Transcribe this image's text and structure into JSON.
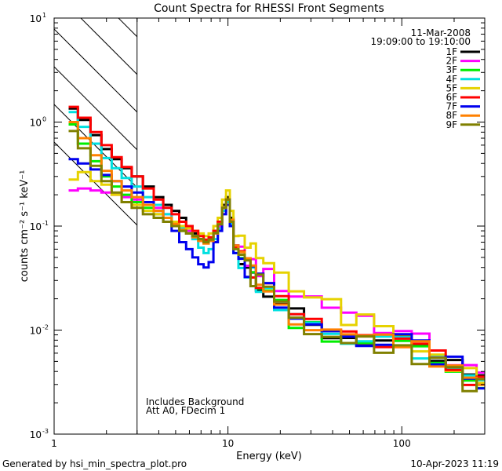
{
  "chart_data": {
    "type": "line",
    "title": "Count Spectra for RHESSI Front Segments",
    "xlabel": "Energy (keV)",
    "ylabel": "counts cm⁻² s⁻¹ keV⁻¹",
    "xscale": "log",
    "yscale": "log",
    "xlim": [
      1,
      300
    ],
    "ylim": [
      0.001,
      10
    ],
    "x_tick_labels": [
      "1",
      "10",
      "100"
    ],
    "y_tick_labels": [
      {
        "base": "10",
        "exp": "-3",
        "value": 0.001
      },
      {
        "base": "10",
        "exp": "-2",
        "value": 0.01
      },
      {
        "base": "10",
        "exp": "-1",
        "value": 0.1
      },
      {
        "base": "10",
        "exp": "0",
        "value": 1
      },
      {
        "base": "10",
        "exp": "1",
        "value": 10
      }
    ],
    "date": "11-Mar-2008",
    "time_range": "19:09:00 to 19:10:00",
    "shaded_region_xmax_kev": 3,
    "annotation_lines": [
      "Includes Background",
      "Att A0, FDecim 1"
    ],
    "energy_kev": [
      1.25,
      1.5,
      1.75,
      2.0,
      2.3,
      2.6,
      3.0,
      3.5,
      4.0,
      4.5,
      5.0,
      5.5,
      6.0,
      6.5,
      7.0,
      7.5,
      8.0,
      8.5,
      9.0,
      9.5,
      10.0,
      10.5,
      11.0,
      12.0,
      13.0,
      14.0,
      15.0,
      17.0,
      20.0,
      25.0,
      30.0,
      40.0,
      50.0,
      60.0,
      80.0,
      100.0,
      130.0,
      160.0,
      200.0,
      250.0,
      290.0
    ],
    "series": [
      {
        "name": "1F",
        "color": "#000000",
        "values": [
          1.35,
          1.05,
          0.75,
          0.55,
          0.44,
          0.36,
          0.3,
          0.24,
          0.19,
          0.16,
          0.14,
          0.12,
          0.1,
          0.085,
          0.075,
          0.07,
          0.075,
          0.09,
          0.11,
          0.16,
          0.19,
          0.12,
          0.065,
          0.05,
          0.042,
          0.035,
          0.03,
          0.024,
          0.018,
          0.013,
          0.01,
          0.009,
          0.0085,
          0.008,
          0.0075,
          0.0072,
          0.006,
          0.005,
          0.0045,
          0.0035,
          0.003
        ]
      },
      {
        "name": "2F",
        "color": "#ff00ff",
        "values": [
          0.22,
          0.23,
          0.22,
          0.21,
          0.2,
          0.19,
          0.18,
          0.17,
          0.15,
          0.13,
          0.11,
          0.1,
          0.09,
          0.08,
          0.072,
          0.07,
          0.075,
          0.085,
          0.1,
          0.14,
          0.17,
          0.11,
          0.065,
          0.052,
          0.046,
          0.042,
          0.038,
          0.032,
          0.027,
          0.022,
          0.02,
          0.017,
          0.015,
          0.013,
          0.011,
          0.009,
          0.0075,
          0.006,
          0.005,
          0.004,
          0.0033
        ]
      },
      {
        "name": "3F",
        "color": "#00ee00",
        "values": [
          0.95,
          0.62,
          0.42,
          0.3,
          0.24,
          0.2,
          0.17,
          0.15,
          0.13,
          0.11,
          0.1,
          0.09,
          0.085,
          0.08,
          0.075,
          0.072,
          0.076,
          0.088,
          0.105,
          0.15,
          0.18,
          0.115,
          0.063,
          0.05,
          0.04,
          0.034,
          0.029,
          0.023,
          0.017,
          0.013,
          0.011,
          0.0095,
          0.009,
          0.0085,
          0.008,
          0.007,
          0.006,
          0.0048,
          0.004,
          0.0033,
          0.0028
        ]
      },
      {
        "name": "4F",
        "color": "#00e0e0",
        "values": [
          1.25,
          0.9,
          0.62,
          0.45,
          0.36,
          0.29,
          0.24,
          0.19,
          0.16,
          0.13,
          0.11,
          0.095,
          0.085,
          0.075,
          0.062,
          0.055,
          0.06,
          0.075,
          0.095,
          0.14,
          0.17,
          0.105,
          0.055,
          0.045,
          0.038,
          0.032,
          0.028,
          0.022,
          0.016,
          0.0125,
          0.01,
          0.009,
          0.0085,
          0.008,
          0.0078,
          0.007,
          0.0062,
          0.0052,
          0.0045,
          0.0038,
          0.003
        ]
      },
      {
        "name": "5F",
        "color": "#e6d200",
        "values": [
          0.28,
          0.33,
          0.27,
          0.25,
          0.2,
          0.17,
          0.16,
          0.14,
          0.13,
          0.12,
          0.11,
          0.1,
          0.095,
          0.09,
          0.085,
          0.08,
          0.085,
          0.1,
          0.12,
          0.18,
          0.22,
          0.14,
          0.08,
          0.07,
          0.062,
          0.055,
          0.05,
          0.042,
          0.034,
          0.026,
          0.021,
          0.016,
          0.014,
          0.012,
          0.01,
          0.008,
          0.0068,
          0.0055,
          0.0045,
          0.0037,
          0.0031
        ]
      },
      {
        "name": "6F",
        "color": "#ff0000",
        "values": [
          1.4,
          1.1,
          0.8,
          0.6,
          0.46,
          0.37,
          0.3,
          0.23,
          0.18,
          0.15,
          0.13,
          0.11,
          0.1,
          0.09,
          0.08,
          0.074,
          0.078,
          0.09,
          0.11,
          0.15,
          0.18,
          0.115,
          0.062,
          0.05,
          0.041,
          0.034,
          0.029,
          0.023,
          0.017,
          0.013,
          0.0105,
          0.0093,
          0.0088,
          0.0082,
          0.0076,
          0.0072,
          0.0062,
          0.0052,
          0.0045,
          0.0036,
          0.003
        ]
      },
      {
        "name": "7F",
        "color": "#0000ee",
        "values": [
          0.44,
          0.4,
          0.35,
          0.31,
          0.27,
          0.24,
          0.21,
          0.17,
          0.14,
          0.11,
          0.09,
          0.07,
          0.06,
          0.05,
          0.043,
          0.04,
          0.045,
          0.07,
          0.09,
          0.13,
          0.16,
          0.1,
          0.055,
          0.045,
          0.039,
          0.034,
          0.03,
          0.024,
          0.018,
          0.0135,
          0.0105,
          0.0092,
          0.0086,
          0.0082,
          0.0079,
          0.0074,
          0.0064,
          0.0054,
          0.0046,
          0.0037,
          0.003
        ]
      },
      {
        "name": "8F",
        "color": "#ff8000",
        "values": [
          1.0,
          0.7,
          0.48,
          0.34,
          0.27,
          0.22,
          0.19,
          0.16,
          0.14,
          0.12,
          0.105,
          0.092,
          0.085,
          0.078,
          0.072,
          0.068,
          0.072,
          0.085,
          0.105,
          0.15,
          0.18,
          0.115,
          0.065,
          0.052,
          0.043,
          0.036,
          0.031,
          0.025,
          0.019,
          0.014,
          0.011,
          0.0098,
          0.0092,
          0.0086,
          0.008,
          0.0074,
          0.0064,
          0.0053,
          0.0045,
          0.0036,
          0.0029
        ]
      },
      {
        "name": "9F",
        "color": "#808000",
        "values": [
          0.82,
          0.56,
          0.38,
          0.27,
          0.21,
          0.17,
          0.15,
          0.13,
          0.12,
          0.11,
          0.1,
          0.09,
          0.085,
          0.08,
          0.075,
          0.07,
          0.074,
          0.086,
          0.104,
          0.15,
          0.18,
          0.11,
          0.06,
          0.048,
          0.04,
          0.033,
          0.028,
          0.022,
          0.016,
          0.012,
          0.0095,
          0.0085,
          0.008,
          0.0076,
          0.0072,
          0.0068,
          0.0058,
          0.0048,
          0.004,
          0.0032,
          0.0027
        ]
      }
    ]
  },
  "footer": {
    "generated_by": "Generated by hsi_min_spectra_plot.pro",
    "timestamp": "10-Apr-2023 11:19"
  }
}
